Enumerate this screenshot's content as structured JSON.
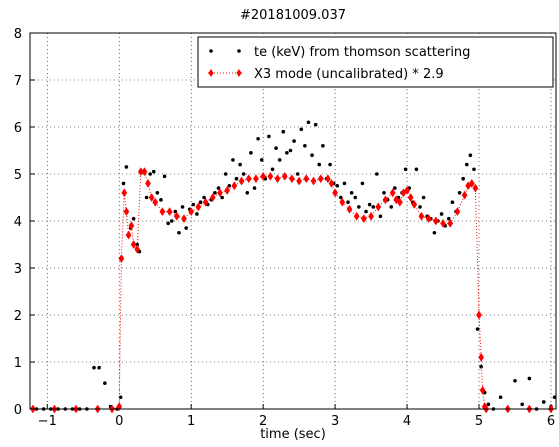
{
  "chart_data": {
    "type": "scatter-line",
    "title": "#20181009.037",
    "x_label": "time (sec)",
    "xlim": [
      -1.24,
      6.07
    ],
    "ylim": [
      0,
      8
    ],
    "xticks": [
      {
        "value": -1,
        "label": "−1"
      },
      0,
      1,
      2,
      3,
      4,
      5,
      6
    ],
    "yticks": [
      0,
      1,
      2,
      3,
      4,
      5,
      6,
      7,
      8
    ],
    "grid": true,
    "legend": "upper right",
    "series": [
      {
        "name": "te (keV) from thomson scattering",
        "color": "#000000",
        "style": "dots",
        "x": [
          -1.15,
          -1.05,
          -0.95,
          -0.85,
          -0.75,
          -0.65,
          -0.55,
          -0.45,
          -0.35,
          -0.28,
          -0.2,
          -0.12,
          -0.03,
          0.02,
          0.06,
          0.1,
          0.16,
          0.2,
          0.25,
          0.28,
          0.33,
          0.38,
          0.43,
          0.48,
          0.53,
          0.58,
          0.63,
          0.68,
          0.73,
          0.78,
          0.83,
          0.88,
          0.93,
          0.98,
          1.03,
          1.08,
          1.13,
          1.18,
          1.23,
          1.28,
          1.33,
          1.38,
          1.43,
          1.48,
          1.53,
          1.58,
          1.63,
          1.68,
          1.73,
          1.78,
          1.83,
          1.88,
          1.93,
          1.98,
          2.03,
          2.08,
          2.13,
          2.18,
          2.23,
          2.28,
          2.33,
          2.38,
          2.43,
          2.48,
          2.53,
          2.58,
          2.63,
          2.68,
          2.73,
          2.78,
          2.83,
          2.88,
          2.93,
          2.98,
          3.03,
          3.08,
          3.13,
          3.18,
          3.23,
          3.28,
          3.33,
          3.38,
          3.43,
          3.48,
          3.53,
          3.58,
          3.63,
          3.68,
          3.73,
          3.78,
          3.83,
          3.88,
          3.93,
          3.98,
          4.03,
          4.08,
          4.13,
          4.18,
          4.23,
          4.28,
          4.33,
          4.38,
          4.43,
          4.48,
          4.53,
          4.58,
          4.63,
          4.68,
          4.73,
          4.78,
          4.83,
          4.88,
          4.93,
          4.98,
          5.03,
          5.08,
          5.13,
          5.2,
          5.3,
          5.4,
          5.5,
          5.6,
          5.7,
          5.8,
          5.9,
          6.0,
          6.05
        ],
        "values": [
          0,
          0,
          0,
          0,
          0,
          0,
          0,
          0,
          0.88,
          0.88,
          0.55,
          0.05,
          0,
          0.25,
          4.8,
          5.15,
          3.85,
          4.05,
          3.5,
          3.35,
          5.05,
          4.5,
          5.0,
          5.05,
          4.6,
          4.45,
          4.95,
          3.95,
          4.0,
          4.2,
          3.75,
          4.3,
          3.85,
          4.25,
          4.35,
          4.15,
          4.4,
          4.5,
          4.35,
          4.45,
          4.6,
          4.7,
          4.5,
          5.0,
          4.75,
          5.3,
          4.9,
          5.2,
          5.0,
          4.6,
          5.45,
          4.7,
          5.75,
          5.3,
          4.9,
          5.8,
          5.1,
          5.55,
          5.3,
          5.9,
          5.45,
          5.5,
          5.7,
          5.0,
          5.95,
          5.6,
          6.1,
          5.4,
          6.05,
          5.2,
          5.6,
          4.9,
          5.2,
          4.8,
          4.75,
          4.5,
          4.8,
          4.4,
          4.6,
          4.5,
          4.3,
          4.8,
          4.2,
          4.35,
          4.3,
          5.0,
          4.1,
          4.6,
          4.45,
          4.3,
          4.7,
          4.5,
          4.6,
          5.1,
          4.7,
          4.4,
          5.1,
          4.3,
          4.5,
          4.1,
          4.05,
          3.75,
          4.0,
          4.15,
          3.9,
          4.05,
          4.4,
          4.2,
          4.6,
          4.9,
          5.2,
          5.4,
          5.1,
          1.7,
          0.9,
          0.35,
          0.1,
          0,
          0.25,
          0,
          0.6,
          0.1,
          0.65,
          0,
          0.15,
          0.05,
          0.25
        ]
      },
      {
        "name": "X3 mode (uncalibrated) * 2.9",
        "color": "#ff0000",
        "style": "dotted-diamond",
        "x": [
          -1.2,
          -0.9,
          -0.6,
          -0.3,
          -0.1,
          0.0,
          0.03,
          0.07,
          0.1,
          0.13,
          0.17,
          0.2,
          0.25,
          0.3,
          0.35,
          0.4,
          0.45,
          0.5,
          0.6,
          0.7,
          0.8,
          0.9,
          1.0,
          1.1,
          1.2,
          1.3,
          1.4,
          1.5,
          1.6,
          1.7,
          1.8,
          1.9,
          2.0,
          2.1,
          2.2,
          2.3,
          2.4,
          2.5,
          2.6,
          2.7,
          2.8,
          2.9,
          2.95,
          3.0,
          3.1,
          3.2,
          3.3,
          3.4,
          3.5,
          3.6,
          3.7,
          3.8,
          3.85,
          3.9,
          3.95,
          4.0,
          4.05,
          4.1,
          4.2,
          4.3,
          4.4,
          4.5,
          4.6,
          4.7,
          4.8,
          4.85,
          4.9,
          4.95,
          5.0,
          5.03,
          5.05,
          5.08,
          5.1,
          5.4,
          5.7,
          6.0
        ],
        "values": [
          0,
          0,
          0,
          0,
          0,
          0.05,
          3.2,
          4.6,
          4.2,
          3.7,
          3.9,
          3.5,
          3.4,
          5.05,
          5.05,
          4.8,
          4.5,
          4.4,
          4.2,
          4.2,
          4.1,
          4.05,
          4.2,
          4.3,
          4.4,
          4.5,
          4.6,
          4.65,
          4.75,
          4.85,
          4.9,
          4.9,
          4.95,
          4.95,
          4.9,
          4.95,
          4.9,
          4.85,
          4.9,
          4.85,
          4.9,
          4.9,
          4.8,
          4.6,
          4.4,
          4.25,
          4.1,
          4.05,
          4.1,
          4.3,
          4.45,
          4.6,
          4.45,
          4.4,
          4.6,
          4.65,
          4.5,
          4.35,
          4.1,
          4.05,
          4.0,
          3.95,
          3.95,
          4.2,
          4.55,
          4.75,
          4.8,
          4.7,
          2.0,
          1.1,
          0.4,
          0.05,
          0,
          0,
          0,
          0
        ]
      }
    ]
  }
}
